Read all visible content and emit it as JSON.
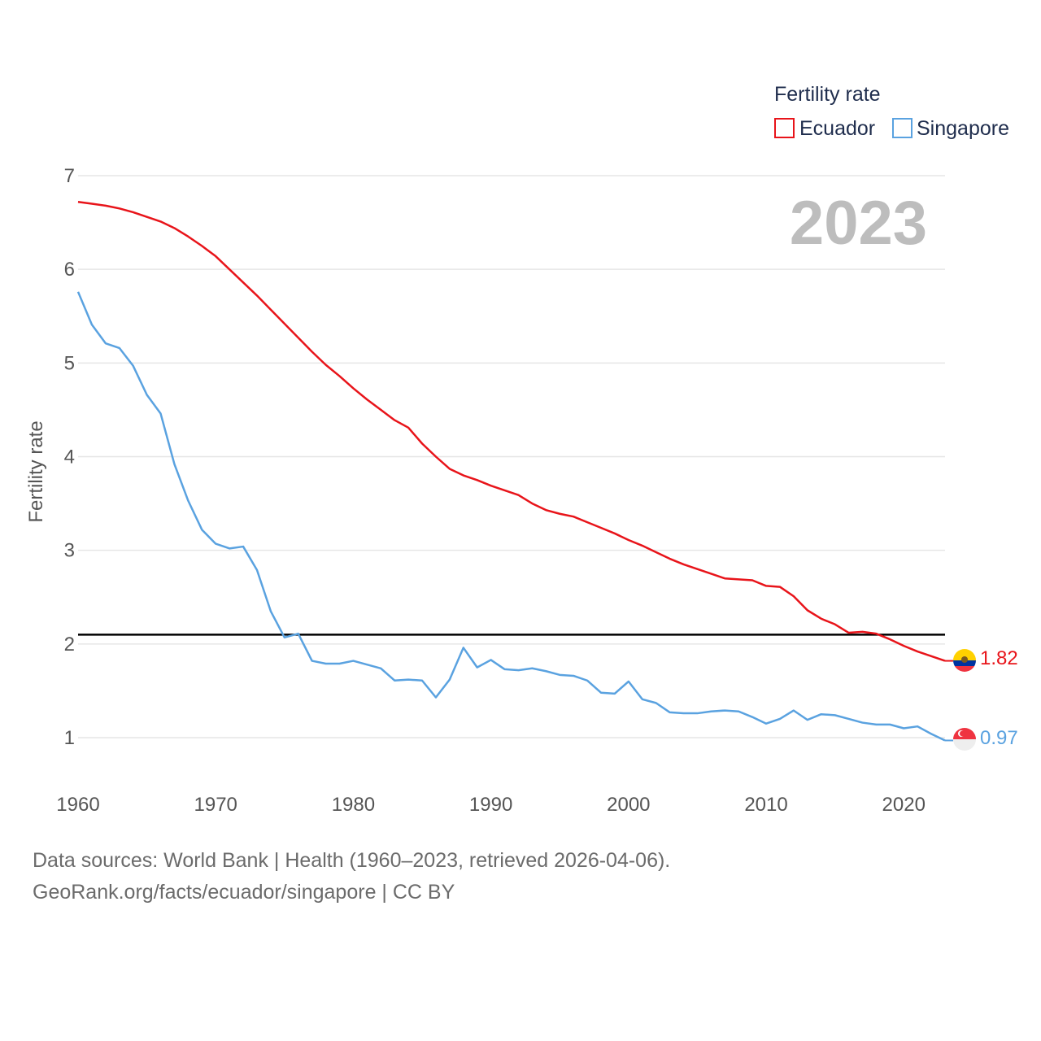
{
  "chart_data": {
    "type": "line",
    "ylabel": "Fertility rate",
    "xlabel": "",
    "ylim": [
      0.5,
      7
    ],
    "xlim": [
      1960,
      2023
    ],
    "yticks": [
      "1",
      "2",
      "3",
      "4",
      "5",
      "6",
      "7"
    ],
    "xticks": [
      "1960",
      "1970",
      "1980",
      "1990",
      "2000",
      "2010",
      "2020"
    ],
    "year_label": "2023",
    "legend": {
      "title": "Fertility rate",
      "position": "top-right"
    },
    "reference_line": 2.1,
    "x": [
      1960,
      1961,
      1962,
      1963,
      1964,
      1965,
      1966,
      1967,
      1968,
      1969,
      1970,
      1971,
      1972,
      1973,
      1974,
      1975,
      1976,
      1977,
      1978,
      1979,
      1980,
      1981,
      1982,
      1983,
      1984,
      1985,
      1986,
      1987,
      1988,
      1989,
      1990,
      1991,
      1992,
      1993,
      1994,
      1995,
      1996,
      1997,
      1998,
      1999,
      2000,
      2001,
      2002,
      2003,
      2004,
      2005,
      2006,
      2007,
      2008,
      2009,
      2010,
      2011,
      2012,
      2013,
      2014,
      2015,
      2016,
      2017,
      2018,
      2019,
      2020,
      2021,
      2022,
      2023
    ],
    "series": [
      {
        "name": "Ecuador",
        "color": "#e8141a",
        "end_label": "1.82",
        "values": [
          6.72,
          6.7,
          6.68,
          6.65,
          6.61,
          6.56,
          6.51,
          6.44,
          6.35,
          6.25,
          6.14,
          6.0,
          5.86,
          5.72,
          5.57,
          5.42,
          5.27,
          5.12,
          4.98,
          4.86,
          4.73,
          4.61,
          4.5,
          4.39,
          4.31,
          4.14,
          4.0,
          3.87,
          3.8,
          3.75,
          3.69,
          3.64,
          3.59,
          3.5,
          3.43,
          3.39,
          3.36,
          3.3,
          3.24,
          3.18,
          3.11,
          3.05,
          2.98,
          2.91,
          2.85,
          2.8,
          2.75,
          2.7,
          2.69,
          2.68,
          2.62,
          2.61,
          2.51,
          2.36,
          2.27,
          2.21,
          2.12,
          2.13,
          2.11,
          2.05,
          1.98,
          1.92,
          1.87,
          1.82
        ]
      },
      {
        "name": "Singapore",
        "color": "#5aa2e0",
        "end_label": "0.97",
        "values": [
          5.76,
          5.41,
          5.21,
          5.16,
          4.97,
          4.66,
          4.46,
          3.92,
          3.53,
          3.22,
          3.07,
          3.02,
          3.04,
          2.79,
          2.35,
          2.07,
          2.11,
          1.82,
          1.79,
          1.79,
          1.82,
          1.78,
          1.74,
          1.61,
          1.62,
          1.61,
          1.43,
          1.62,
          1.96,
          1.75,
          1.83,
          1.73,
          1.72,
          1.74,
          1.71,
          1.67,
          1.66,
          1.61,
          1.48,
          1.47,
          1.6,
          1.41,
          1.37,
          1.27,
          1.26,
          1.26,
          1.28,
          1.29,
          1.28,
          1.22,
          1.15,
          1.2,
          1.29,
          1.19,
          1.25,
          1.24,
          1.2,
          1.16,
          1.14,
          1.14,
          1.1,
          1.12,
          1.04,
          0.97
        ]
      }
    ]
  },
  "footer": {
    "source_line": "Data sources: World Bank | Health (1960–2023, retrieved 2026-04-06).",
    "credit_line": "GeoRank.org/facts/ecuador/singapore | CC BY"
  },
  "flags": {
    "ecuador": "ecuador-flag-icon",
    "singapore": "singapore-flag-icon"
  }
}
